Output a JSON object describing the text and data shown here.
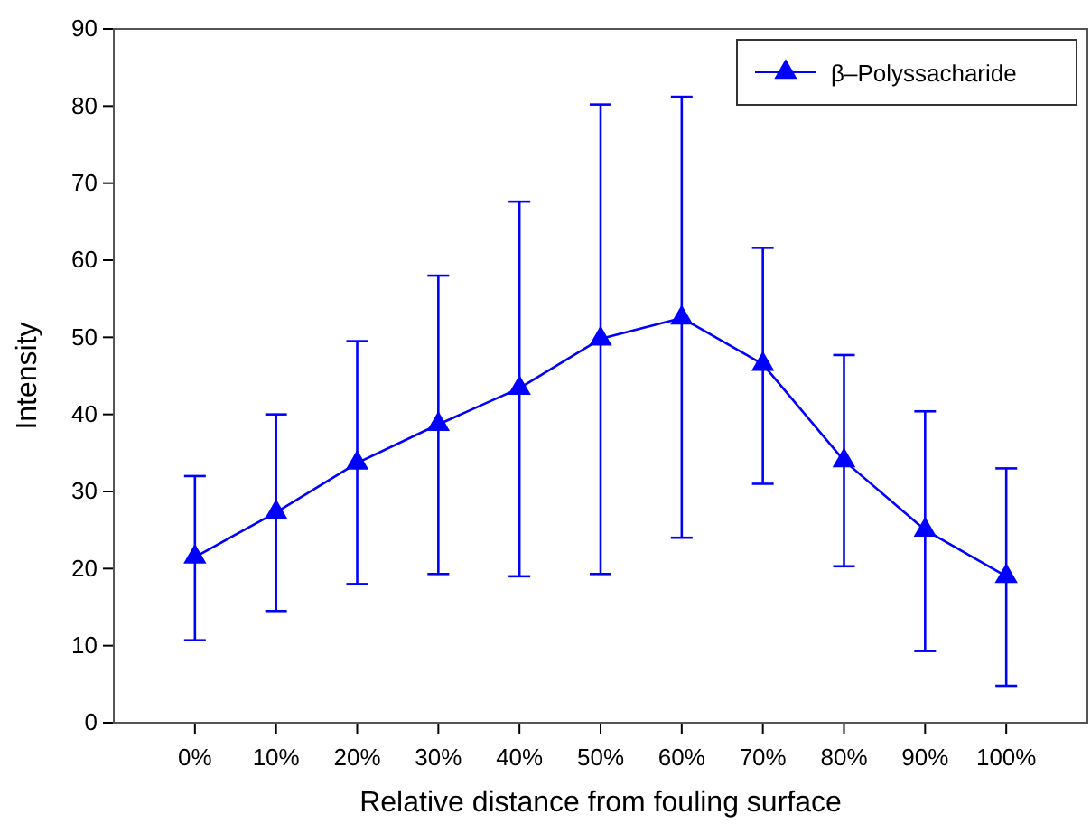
{
  "chart_data": {
    "type": "line",
    "xlabel": "Relative distance from fouling surface",
    "ylabel": "Intensity",
    "categories": [
      "0%",
      "10%",
      "20%",
      "30%",
      "40%",
      "50%",
      "60%",
      "70%",
      "80%",
      "90%",
      "100%"
    ],
    "series": [
      {
        "name": "β–Polyssacharide",
        "color": "#0000ff",
        "values": [
          21.5,
          27.3,
          33.7,
          38.7,
          43.4,
          49.8,
          52.5,
          46.5,
          34,
          25,
          19
        ],
        "errors": [
          [
            10.7,
            32
          ],
          [
            14.5,
            40
          ],
          [
            18,
            49.5
          ],
          [
            19.3,
            58
          ],
          [
            19,
            67.6
          ],
          [
            19.3,
            80.2
          ],
          [
            24,
            81.2
          ],
          [
            31,
            61.6
          ],
          [
            20.3,
            47.7
          ],
          [
            9.3,
            40.4
          ],
          [
            4.8,
            33
          ]
        ]
      }
    ],
    "ylim": [
      0,
      90
    ],
    "yticks": [
      0,
      10,
      20,
      30,
      40,
      50,
      60,
      70,
      80,
      90
    ],
    "grid": false,
    "legend": "top right",
    "marker": "triangle",
    "line_style": "solid"
  }
}
